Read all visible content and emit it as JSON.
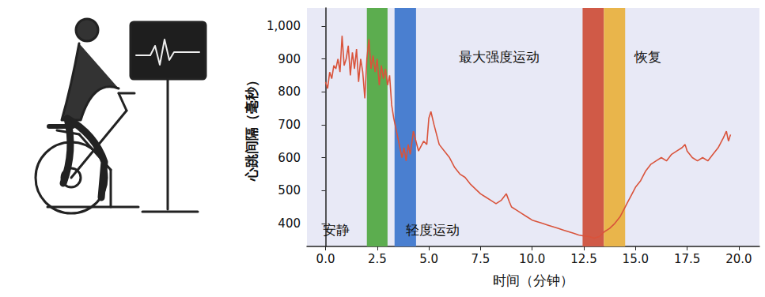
{
  "chart_data": {
    "type": "line",
    "x_label": "时间（分钟）",
    "y_label": "心跳间隔（毫秒）",
    "color": "#d9533b",
    "grid": false,
    "xlim": [
      -0.9,
      21
    ],
    "xticks": [
      {
        "value": 0,
        "label": "0.0"
      },
      2.5,
      {
        "value": 5,
        "label": "5.0"
      },
      7.5,
      {
        "value": 10,
        "label": "10.0"
      },
      12.5,
      {
        "value": 15,
        "label": "15.0"
      },
      17.5,
      {
        "value": 20,
        "label": "20.0"
      }
    ],
    "ylim": [
      330,
      1055
    ],
    "yticks": [
      400,
      500,
      600,
      700,
      800,
      900,
      {
        "value": 1000,
        "label": "1,000"
      }
    ],
    "x": [
      0.0,
      0.1,
      0.2,
      0.3,
      0.4,
      0.5,
      0.6,
      0.7,
      0.8,
      0.9,
      1.0,
      1.1,
      1.2,
      1.3,
      1.4,
      1.5,
      1.6,
      1.7,
      1.8,
      1.9,
      2.0,
      2.1,
      2.2,
      2.3,
      2.4,
      2.5,
      2.6,
      2.7,
      2.8,
      2.9,
      3.0,
      3.1,
      3.2,
      3.3,
      3.5,
      3.7,
      3.8,
      3.9,
      4.0,
      4.1,
      4.25,
      4.5,
      4.75,
      4.9,
      5.0,
      5.1,
      5.25,
      5.5,
      5.75,
      6.0,
      6.25,
      6.5,
      6.75,
      7.0,
      7.25,
      7.5,
      7.75,
      8.0,
      8.25,
      8.5,
      8.75,
      8.9,
      9.0,
      9.25,
      9.5,
      9.75,
      10.0,
      10.25,
      10.5,
      10.75,
      11.0,
      11.25,
      11.5,
      11.75,
      12.0,
      12.25,
      12.5,
      12.75,
      13.0,
      13.25,
      13.5,
      13.75,
      14.0,
      14.25,
      14.5,
      14.75,
      15.0,
      15.25,
      15.5,
      15.75,
      16.0,
      16.25,
      16.5,
      16.75,
      17.0,
      17.25,
      17.4,
      17.5,
      17.75,
      18.0,
      18.25,
      18.5,
      18.75,
      19.0,
      19.25,
      19.4,
      19.5,
      19.6
    ],
    "values": [
      830,
      810,
      860,
      840,
      880,
      870,
      900,
      860,
      970,
      880,
      900,
      940,
      850,
      920,
      870,
      930,
      830,
      900,
      860,
      780,
      900,
      960,
      870,
      910,
      860,
      900,
      820,
      880,
      840,
      870,
      820,
      850,
      760,
      720,
      660,
      600,
      630,
      590,
      640,
      610,
      680,
      620,
      650,
      640,
      720,
      740,
      700,
      640,
      620,
      600,
      570,
      550,
      540,
      520,
      505,
      490,
      480,
      470,
      460,
      470,
      490,
      465,
      450,
      440,
      430,
      420,
      410,
      405,
      400,
      395,
      390,
      385,
      380,
      375,
      370,
      365,
      362,
      360,
      355,
      360,
      375,
      385,
      400,
      420,
      450,
      480,
      510,
      530,
      560,
      580,
      590,
      600,
      590,
      610,
      620,
      630,
      640,
      620,
      600,
      590,
      600,
      590,
      610,
      630,
      660,
      680,
      650,
      670
    ],
    "bands": [
      {
        "label": "安静",
        "start": 2.0,
        "end": 3.0,
        "color": "#5cad4f"
      },
      {
        "label": "轻度运动",
        "start": 3.34,
        "end": 4.38,
        "color": "#4a7fd0"
      },
      {
        "label": "最大强度运动",
        "start": 12.44,
        "end": 13.47,
        "color": "#d05a47"
      },
      {
        "label": "恢复",
        "start": 13.47,
        "end": 14.5,
        "color": "#e9b54b"
      }
    ],
    "annotations": [
      {
        "text": "安静",
        "x": 0.5,
        "y": 380
      },
      {
        "text": "轻度运动",
        "x": 5.2,
        "y": 380
      },
      {
        "text": "最大强度运动",
        "x": 8.4,
        "y": 905
      },
      {
        "text": "恢复",
        "x": 15.6,
        "y": 905
      }
    ]
  }
}
